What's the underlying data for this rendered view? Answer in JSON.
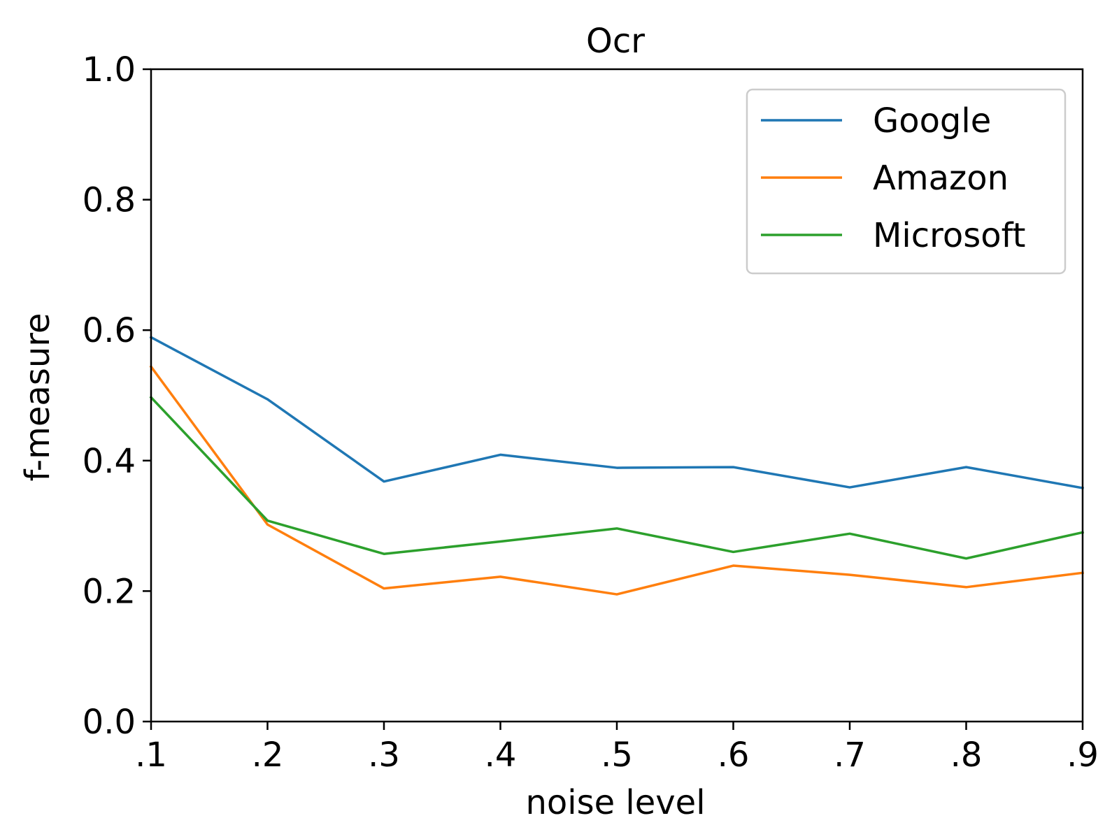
{
  "chart_data": {
    "type": "line",
    "title": "Ocr",
    "xlabel": "noise level",
    "ylabel": "f-measure",
    "x": [
      0.1,
      0.2,
      0.3,
      0.4,
      0.5,
      0.6,
      0.7,
      0.8,
      0.9
    ],
    "x_tick_labels": [
      ".1",
      ".2",
      ".3",
      ".4",
      ".5",
      ".6",
      ".7",
      ".8",
      ".9"
    ],
    "y_ticks": [
      0.0,
      0.2,
      0.4,
      0.6,
      0.8,
      1.0
    ],
    "y_tick_labels": [
      "0.0",
      "0.2",
      "0.4",
      "0.6",
      "0.8",
      "1.0"
    ],
    "xlim": [
      0.1,
      0.9
    ],
    "ylim": [
      0.0,
      1.0
    ],
    "grid": false,
    "legend_position": "top-right",
    "series": [
      {
        "name": "Google",
        "color": "#1f77b4",
        "values": [
          0.589,
          0.494,
          0.368,
          0.409,
          0.389,
          0.39,
          0.359,
          0.39,
          0.358
        ]
      },
      {
        "name": "Amazon",
        "color": "#ff7f0e",
        "values": [
          0.544,
          0.302,
          0.204,
          0.222,
          0.195,
          0.239,
          0.225,
          0.206,
          0.228
        ]
      },
      {
        "name": "Microsoft",
        "color": "#2ca02c",
        "values": [
          0.497,
          0.308,
          0.257,
          0.276,
          0.296,
          0.26,
          0.288,
          0.25,
          0.29
        ]
      }
    ]
  }
}
